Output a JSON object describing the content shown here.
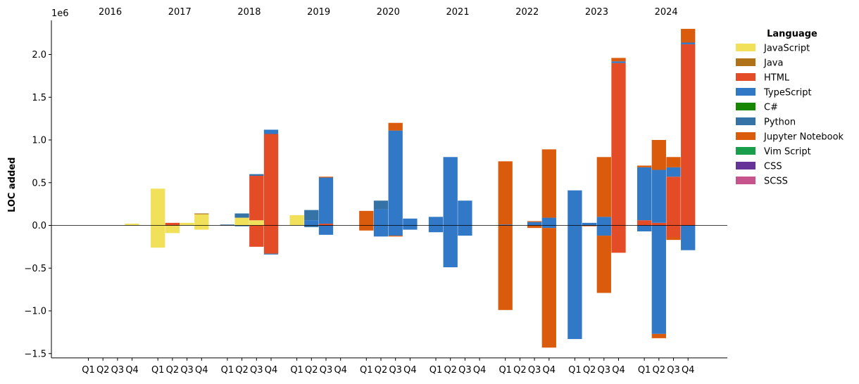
{
  "chart_data": {
    "type": "bar",
    "stacked": true,
    "ylabel": "LOC added",
    "y_offset_label": "1e6",
    "ylim": [
      -1.55,
      2.4
    ],
    "y_unit": "millions",
    "yticks": [
      -1.5,
      -1.0,
      -0.5,
      0.0,
      0.5,
      1.0,
      1.5,
      2.0
    ],
    "ytick_labels": [
      "−1.5",
      "−1.0",
      "−0.5",
      "0.0",
      "0.5",
      "1.0",
      "1.5",
      "2.0"
    ],
    "years": [
      "2016",
      "2017",
      "2018",
      "2019",
      "2020",
      "2021",
      "2022",
      "2023",
      "2024"
    ],
    "quarters": [
      "Q1",
      "Q2",
      "Q3",
      "Q4"
    ],
    "legend": {
      "title": "Language",
      "placement": "right",
      "entries": [
        {
          "name": "JavaScript",
          "color": "#f1e05a"
        },
        {
          "name": "Java",
          "color": "#b07219"
        },
        {
          "name": "HTML",
          "color": "#e34c26"
        },
        {
          "name": "TypeScript",
          "color": "#3178c6"
        },
        {
          "name": "C#",
          "color": "#178600"
        },
        {
          "name": "Python",
          "color": "#3572A5"
        },
        {
          "name": "Jupyter Notebook",
          "color": "#DA5B0B"
        },
        {
          "name": "Vim Script",
          "color": "#199f4b"
        },
        {
          "name": "CSS",
          "color": "#663399"
        },
        {
          "name": "SCSS",
          "color": "#c6538c"
        }
      ]
    },
    "bars": [
      {
        "year": "2016",
        "quarter": "Q4",
        "pos": [
          {
            "lang": "JavaScript",
            "value": 0.02
          }
        ],
        "neg": []
      },
      {
        "year": "2017",
        "quarter": "Q1",
        "pos": [
          {
            "lang": "JavaScript",
            "value": 0.43
          }
        ],
        "neg": [
          {
            "lang": "JavaScript",
            "value": 0.26
          }
        ]
      },
      {
        "year": "2017",
        "quarter": "Q2",
        "pos": [
          {
            "lang": "HTML",
            "value": 0.03
          }
        ],
        "neg": [
          {
            "lang": "JavaScript",
            "value": 0.09
          }
        ]
      },
      {
        "year": "2017",
        "quarter": "Q3",
        "pos": [
          {
            "lang": "JavaScript",
            "value": 0.03
          }
        ],
        "neg": []
      },
      {
        "year": "2017",
        "quarter": "Q4",
        "pos": [
          {
            "lang": "JavaScript",
            "value": 0.13
          },
          {
            "lang": "Java",
            "value": 0.01
          }
        ],
        "neg": [
          {
            "lang": "JavaScript",
            "value": 0.05
          }
        ]
      },
      {
        "year": "2018",
        "quarter": "Q1",
        "pos": [
          {
            "lang": "Python",
            "value": 0.01
          }
        ],
        "neg": []
      },
      {
        "year": "2018",
        "quarter": "Q2",
        "pos": [
          {
            "lang": "JavaScript",
            "value": 0.09
          },
          {
            "lang": "Python",
            "value": 0.05
          }
        ],
        "neg": [
          {
            "lang": "Python",
            "value": 0.01
          }
        ]
      },
      {
        "year": "2018",
        "quarter": "Q3",
        "pos": [
          {
            "lang": "JavaScript",
            "value": 0.06
          },
          {
            "lang": "HTML",
            "value": 0.52
          },
          {
            "lang": "Python",
            "value": 0.02
          }
        ],
        "neg": [
          {
            "lang": "HTML",
            "value": 0.25
          }
        ]
      },
      {
        "year": "2018",
        "quarter": "Q4",
        "pos": [
          {
            "lang": "HTML",
            "value": 1.07
          },
          {
            "lang": "TypeScript",
            "value": 0.05
          }
        ],
        "neg": [
          {
            "lang": "HTML",
            "value": 0.33
          },
          {
            "lang": "Python",
            "value": 0.01
          }
        ]
      },
      {
        "year": "2019",
        "quarter": "Q1",
        "pos": [
          {
            "lang": "JavaScript",
            "value": 0.12
          }
        ],
        "neg": []
      },
      {
        "year": "2019",
        "quarter": "Q2",
        "pos": [
          {
            "lang": "TypeScript",
            "value": 0.06
          },
          {
            "lang": "Python",
            "value": 0.12
          }
        ],
        "neg": [
          {
            "lang": "Python",
            "value": 0.02
          }
        ]
      },
      {
        "year": "2019",
        "quarter": "Q3",
        "pos": [
          {
            "lang": "HTML",
            "value": 0.02
          },
          {
            "lang": "TypeScript",
            "value": 0.54
          },
          {
            "lang": "Jupyter Notebook",
            "value": 0.01
          }
        ],
        "neg": [
          {
            "lang": "TypeScript",
            "value": 0.11
          }
        ]
      },
      {
        "year": "2020",
        "quarter": "Q1",
        "pos": [
          {
            "lang": "Jupyter Notebook",
            "value": 0.17
          }
        ],
        "neg": [
          {
            "lang": "Jupyter Notebook",
            "value": 0.06
          }
        ]
      },
      {
        "year": "2020",
        "quarter": "Q2",
        "pos": [
          {
            "lang": "TypeScript",
            "value": 0.19
          },
          {
            "lang": "Python",
            "value": 0.1
          }
        ],
        "neg": [
          {
            "lang": "TypeScript",
            "value": 0.13
          }
        ]
      },
      {
        "year": "2020",
        "quarter": "Q3",
        "pos": [
          {
            "lang": "TypeScript",
            "value": 1.11
          },
          {
            "lang": "Jupyter Notebook",
            "value": 0.09
          }
        ],
        "neg": [
          {
            "lang": "TypeScript",
            "value": 0.12
          },
          {
            "lang": "Jupyter Notebook",
            "value": 0.01
          }
        ]
      },
      {
        "year": "2020",
        "quarter": "Q4",
        "pos": [
          {
            "lang": "TypeScript",
            "value": 0.08
          }
        ],
        "neg": [
          {
            "lang": "TypeScript",
            "value": 0.05
          }
        ]
      },
      {
        "year": "2021",
        "quarter": "Q1",
        "pos": [
          {
            "lang": "TypeScript",
            "value": 0.1
          }
        ],
        "neg": [
          {
            "lang": "TypeScript",
            "value": 0.08
          }
        ]
      },
      {
        "year": "2021",
        "quarter": "Q2",
        "pos": [
          {
            "lang": "TypeScript",
            "value": 0.8
          }
        ],
        "neg": [
          {
            "lang": "TypeScript",
            "value": 0.49
          }
        ]
      },
      {
        "year": "2021",
        "quarter": "Q3",
        "pos": [
          {
            "lang": "TypeScript",
            "value": 0.29
          }
        ],
        "neg": [
          {
            "lang": "TypeScript",
            "value": 0.12
          }
        ]
      },
      {
        "year": "2022",
        "quarter": "Q1",
        "pos": [
          {
            "lang": "TypeScript",
            "value": 0.01
          },
          {
            "lang": "Jupyter Notebook",
            "value": 0.74
          }
        ],
        "neg": [
          {
            "lang": "Jupyter Notebook",
            "value": 0.99
          }
        ]
      },
      {
        "year": "2022",
        "quarter": "Q3",
        "pos": [
          {
            "lang": "TypeScript",
            "value": 0.04
          },
          {
            "lang": "Jupyter Notebook",
            "value": 0.01
          }
        ],
        "neg": [
          {
            "lang": "Jupyter Notebook",
            "value": 0.03
          }
        ]
      },
      {
        "year": "2022",
        "quarter": "Q4",
        "pos": [
          {
            "lang": "TypeScript",
            "value": 0.09
          },
          {
            "lang": "Jupyter Notebook",
            "value": 0.8
          }
        ],
        "neg": [
          {
            "lang": "TypeScript",
            "value": 0.03
          },
          {
            "lang": "Jupyter Notebook",
            "value": 1.4
          }
        ]
      },
      {
        "year": "2023",
        "quarter": "Q1",
        "pos": [
          {
            "lang": "TypeScript",
            "value": 0.41
          }
        ],
        "neg": [
          {
            "lang": "TypeScript",
            "value": 1.33
          }
        ]
      },
      {
        "year": "2023",
        "quarter": "Q2",
        "pos": [
          {
            "lang": "TypeScript",
            "value": 0.03
          }
        ],
        "neg": [
          {
            "lang": "Jupyter Notebook",
            "value": 0.01
          }
        ]
      },
      {
        "year": "2023",
        "quarter": "Q3",
        "pos": [
          {
            "lang": "TypeScript",
            "value": 0.1
          },
          {
            "lang": "Jupyter Notebook",
            "value": 0.7
          }
        ],
        "neg": [
          {
            "lang": "TypeScript",
            "value": 0.12
          },
          {
            "lang": "Jupyter Notebook",
            "value": 0.67
          }
        ]
      },
      {
        "year": "2023",
        "quarter": "Q4",
        "pos": [
          {
            "lang": "HTML",
            "value": 1.9
          },
          {
            "lang": "TypeScript",
            "value": 0.02
          },
          {
            "lang": "Jupyter Notebook",
            "value": 0.04
          }
        ],
        "neg": [
          {
            "lang": "HTML",
            "value": 0.32
          }
        ]
      },
      {
        "year": "2024",
        "quarter": "Q1",
        "pos": [
          {
            "lang": "HTML",
            "value": 0.06
          },
          {
            "lang": "TypeScript",
            "value": 0.62
          },
          {
            "lang": "Jupyter Notebook",
            "value": 0.02
          }
        ],
        "neg": [
          {
            "lang": "TypeScript",
            "value": 0.07
          }
        ]
      },
      {
        "year": "2024",
        "quarter": "Q2",
        "pos": [
          {
            "lang": "HTML",
            "value": 0.03
          },
          {
            "lang": "TypeScript",
            "value": 0.62
          },
          {
            "lang": "Jupyter Notebook",
            "value": 0.35
          }
        ],
        "neg": [
          {
            "lang": "TypeScript",
            "value": 1.27
          },
          {
            "lang": "Jupyter Notebook",
            "value": 0.05
          }
        ]
      },
      {
        "year": "2024",
        "quarter": "Q3",
        "pos": [
          {
            "lang": "HTML",
            "value": 0.57
          },
          {
            "lang": "TypeScript",
            "value": 0.11
          },
          {
            "lang": "Jupyter Notebook",
            "value": 0.12
          }
        ],
        "neg": [
          {
            "lang": "HTML",
            "value": 0.14
          },
          {
            "lang": "Jupyter Notebook",
            "value": 0.03
          }
        ]
      },
      {
        "year": "2024",
        "quarter": "Q4",
        "pos": [
          {
            "lang": "HTML",
            "value": 2.12
          },
          {
            "lang": "TypeScript",
            "value": 0.02
          },
          {
            "lang": "Jupyter Notebook",
            "value": 0.16
          }
        ],
        "neg": [
          {
            "lang": "TypeScript",
            "value": 0.29
          }
        ]
      }
    ]
  }
}
